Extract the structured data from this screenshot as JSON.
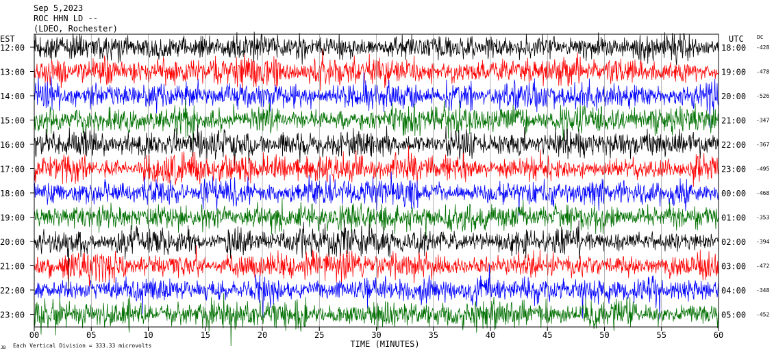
{
  "header": {
    "date": "Sep 5,2023",
    "channel": "ROC HHN LD --",
    "station": "(LDEO, Rochester)"
  },
  "chart_data": {
    "type": "line",
    "left_axis_title": "EST",
    "right_axis_title": "UTC",
    "dc_header": "DC",
    "xlabel": "TIME (MINUTES)",
    "x_ticks": [
      "00",
      "05",
      "10",
      "15",
      "20",
      "25",
      "30",
      "35",
      "40",
      "45",
      "50",
      "55",
      "60"
    ],
    "xlim": [
      0,
      60
    ],
    "trace_colors": [
      "#000000",
      "#ff0000",
      "#0000ff",
      "#007000"
    ],
    "rows": [
      {
        "est": "12:00",
        "utc": "18:00",
        "dc": "-428"
      },
      {
        "est": "13:00",
        "utc": "19:00",
        "dc": "-478"
      },
      {
        "est": "14:00",
        "utc": "20:00",
        "dc": "-526"
      },
      {
        "est": "15:00",
        "utc": "21:00",
        "dc": "-347"
      },
      {
        "est": "16:00",
        "utc": "22:00",
        "dc": "-367"
      },
      {
        "est": "17:00",
        "utc": "23:00",
        "dc": "-495"
      },
      {
        "est": "18:00",
        "utc": "00:00",
        "dc": "-468"
      },
      {
        "est": "19:00",
        "utc": "01:00",
        "dc": "-353"
      },
      {
        "est": "20:00",
        "utc": "02:00",
        "dc": "-394"
      },
      {
        "est": "21:00",
        "utc": "03:00",
        "dc": "-472"
      },
      {
        "est": "22:00",
        "utc": "04:00",
        "dc": "-348"
      },
      {
        "est": "23:00",
        "utc": "05:00",
        "dc": "-452"
      }
    ],
    "grid": true
  },
  "footer": {
    "scale_note": "Each Vertical Division =  333.33 microvolts",
    "corner_mark": "JB"
  }
}
